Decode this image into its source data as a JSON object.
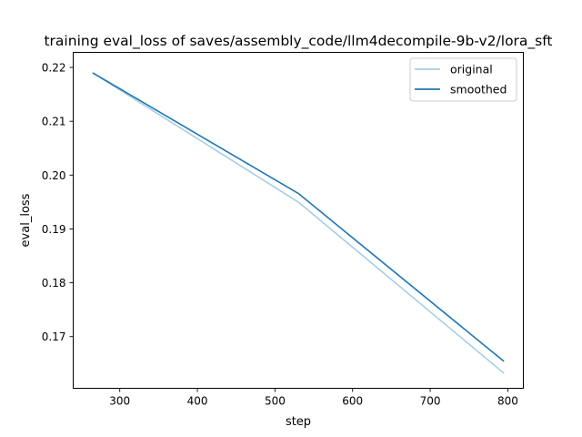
{
  "chart_data": {
    "type": "line",
    "title": "training eval_loss of saves/assembly_code/llm4decompile-9b-v2/lora_sft",
    "xlabel": "step",
    "ylabel": "eval_loss",
    "xlim": [
      240,
      820
    ],
    "ylim": [
      0.1604,
      0.2228
    ],
    "xticks": [
      300,
      400,
      500,
      600,
      700,
      800
    ],
    "xtick_labels": [
      "300",
      "400",
      "500",
      "600",
      "700",
      "800"
    ],
    "yticks": [
      0.17,
      0.18,
      0.19,
      0.2,
      0.21,
      0.22
    ],
    "ytick_labels": [
      "0.17",
      "0.18",
      "0.19",
      "0.20",
      "0.21",
      "0.22"
    ],
    "grid": false,
    "legend_position": "top-right",
    "series": [
      {
        "name": "original",
        "color": "#a6cee3",
        "x": [
          265,
          530,
          795
        ],
        "y": [
          0.219,
          0.195,
          0.1632
        ]
      },
      {
        "name": "smoothed",
        "color": "#1f78b4",
        "x": [
          265,
          530,
          795
        ],
        "y": [
          0.219,
          0.1966,
          0.1654
        ]
      }
    ]
  }
}
